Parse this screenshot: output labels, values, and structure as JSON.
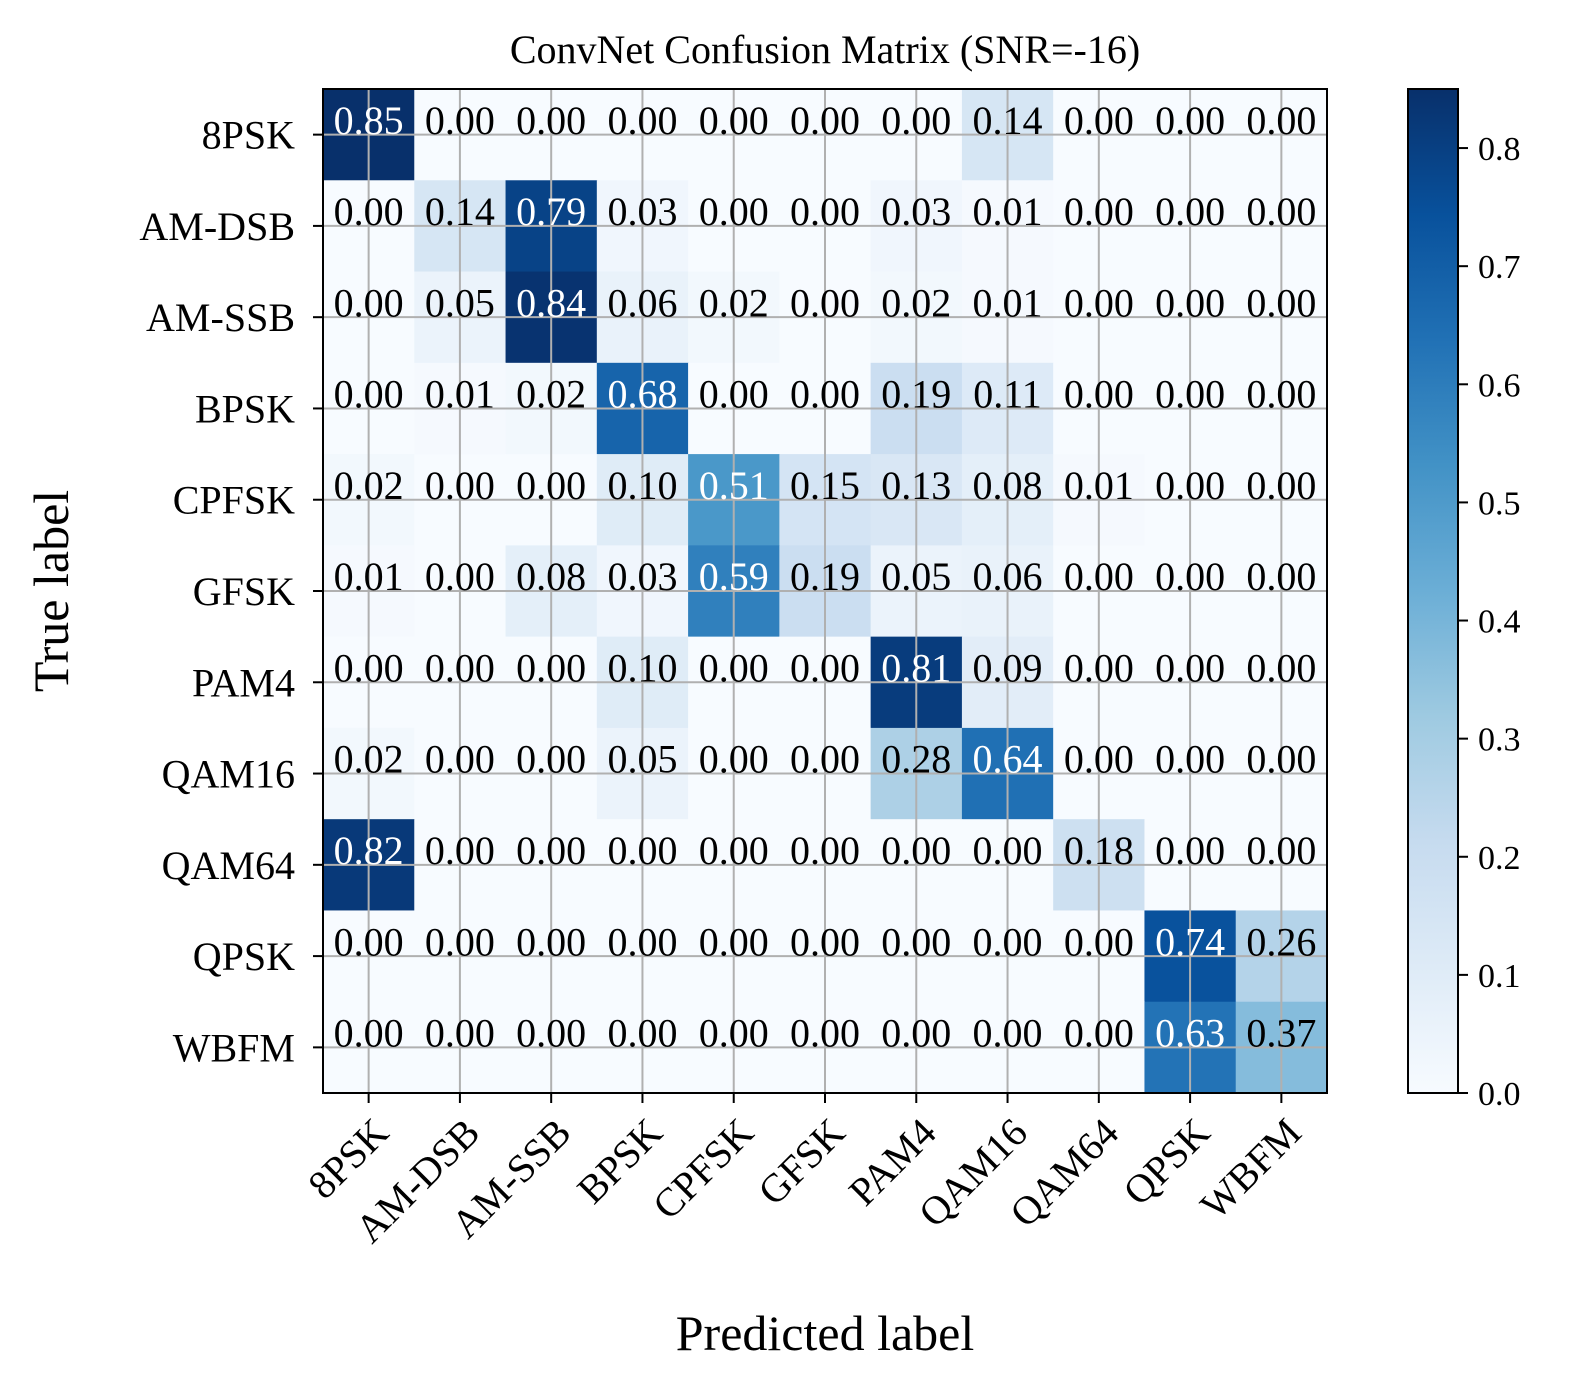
{
  "chart_data": {
    "type": "heatmap",
    "title": "ConvNet Confusion Matrix (SNR=-16)",
    "xlabel": "Predicted label",
    "ylabel": "True label",
    "x_categories": [
      "8PSK",
      "AM-DSB",
      "AM-SSB",
      "BPSK",
      "CPFSK",
      "GFSK",
      "PAM4",
      "QAM16",
      "QAM64",
      "QPSK",
      "WBFM"
    ],
    "y_categories": [
      "8PSK",
      "AM-DSB",
      "AM-SSB",
      "BPSK",
      "CPFSK",
      "GFSK",
      "PAM4",
      "QAM16",
      "QAM64",
      "QPSK",
      "WBFM"
    ],
    "matrix": [
      [
        0.85,
        0.0,
        0.0,
        0.0,
        0.0,
        0.0,
        0.0,
        0.14,
        0.0,
        0.0,
        0.0
      ],
      [
        0.0,
        0.14,
        0.79,
        0.03,
        0.0,
        0.0,
        0.03,
        0.01,
        0.0,
        0.0,
        0.0
      ],
      [
        0.0,
        0.05,
        0.84,
        0.06,
        0.02,
        0.0,
        0.02,
        0.01,
        0.0,
        0.0,
        0.0
      ],
      [
        0.0,
        0.01,
        0.02,
        0.68,
        0.0,
        0.0,
        0.19,
        0.11,
        0.0,
        0.0,
        0.0
      ],
      [
        0.02,
        0.0,
        0.0,
        0.1,
        0.51,
        0.15,
        0.13,
        0.08,
        0.01,
        0.0,
        0.0
      ],
      [
        0.01,
        0.0,
        0.08,
        0.03,
        0.59,
        0.19,
        0.05,
        0.06,
        0.0,
        0.0,
        0.0
      ],
      [
        0.0,
        0.0,
        0.0,
        0.1,
        0.0,
        0.0,
        0.81,
        0.09,
        0.0,
        0.0,
        0.0
      ],
      [
        0.02,
        0.0,
        0.0,
        0.05,
        0.0,
        0.0,
        0.28,
        0.64,
        0.0,
        0.0,
        0.0
      ],
      [
        0.82,
        0.0,
        0.0,
        0.0,
        0.0,
        0.0,
        0.0,
        0.0,
        0.18,
        0.0,
        0.0
      ],
      [
        0.0,
        0.0,
        0.0,
        0.0,
        0.0,
        0.0,
        0.0,
        0.0,
        0.0,
        0.74,
        0.26
      ],
      [
        0.0,
        0.0,
        0.0,
        0.0,
        0.0,
        0.0,
        0.0,
        0.0,
        0.0,
        0.63,
        0.37
      ]
    ],
    "colormap": "Blues",
    "colorbar": {
      "range": [
        0.0,
        0.85
      ],
      "ticks": [
        0.0,
        0.1,
        0.2,
        0.3,
        0.4,
        0.5,
        0.6,
        0.7,
        0.8
      ],
      "tick_labels": [
        "0.0",
        "0.1",
        "0.2",
        "0.3",
        "0.4",
        "0.5",
        "0.6",
        "0.7",
        "0.8"
      ]
    },
    "grid": true
  }
}
